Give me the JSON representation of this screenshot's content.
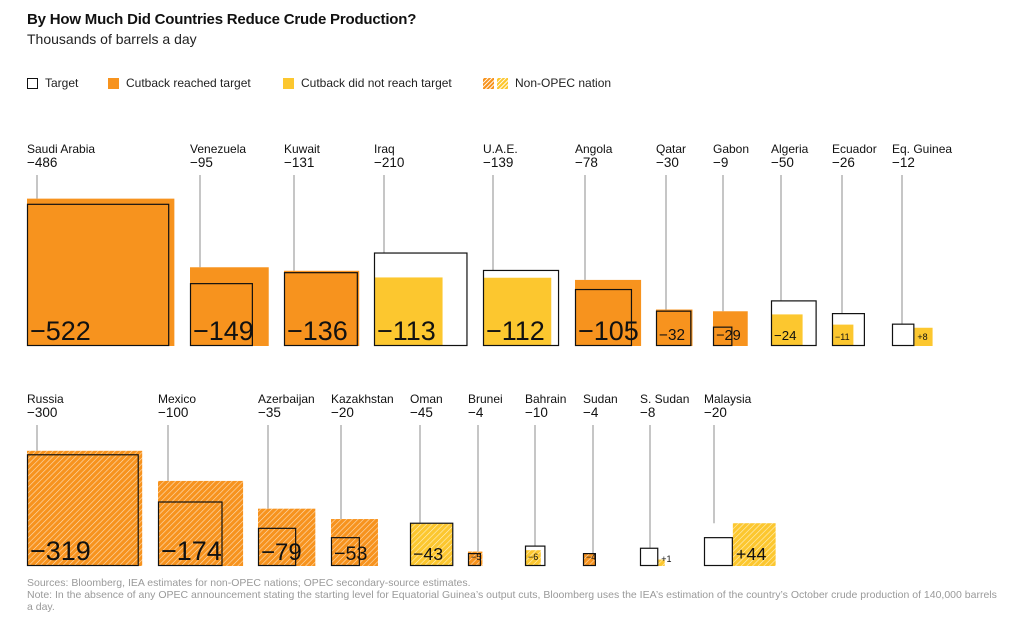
{
  "title": "By How Much Did Countries Reduce Crude Production?",
  "subtitle": "Thousands of barrels a day",
  "legend": {
    "target": "Target",
    "reached": "Cutback reached target",
    "not_reached": "Cutback did not reach target",
    "non_opec": "Non-OPEC nation"
  },
  "colors": {
    "reached": "#f7931e",
    "not_reached": "#fcc72f",
    "target_outline": "#111111",
    "leader_line": "#8c8c8c"
  },
  "chart_data": {
    "type": "proportional-squares",
    "title": "By How Much Did Countries Reduce Crude Production?",
    "subtitle": "Thousands of barrels a day",
    "note_value": "target shown under country name; actual cutback shown inside square",
    "rows": [
      [
        {
          "country": "Saudi Arabia",
          "target": -486,
          "actual": -522,
          "actual_label": "−522",
          "target_label": "−486",
          "status": "reached",
          "non_opec": false
        },
        {
          "country": "Venezuela",
          "target": -95,
          "actual": -149,
          "actual_label": "−149",
          "target_label": "−95",
          "status": "reached",
          "non_opec": false
        },
        {
          "country": "Kuwait",
          "target": -131,
          "actual": -136,
          "actual_label": "−136",
          "target_label": "−131",
          "status": "reached",
          "non_opec": false
        },
        {
          "country": "Iraq",
          "target": -210,
          "actual": -113,
          "actual_label": "−113",
          "target_label": "−210",
          "status": "not_reached",
          "non_opec": false
        },
        {
          "country": "U.A.E.",
          "target": -139,
          "actual": -112,
          "actual_label": "−112",
          "target_label": "−139",
          "status": "not_reached",
          "non_opec": false
        },
        {
          "country": "Angola",
          "target": -78,
          "actual": -105,
          "actual_label": "−105",
          "target_label": "−78",
          "status": "reached",
          "non_opec": false
        },
        {
          "country": "Qatar",
          "target": -30,
          "actual": -32,
          "actual_label": "−32",
          "target_label": "−30",
          "status": "reached",
          "non_opec": false
        },
        {
          "country": "Gabon",
          "target": -9,
          "actual": -29,
          "actual_label": "−29",
          "target_label": "−9",
          "status": "reached",
          "non_opec": false
        },
        {
          "country": "Algeria",
          "target": -50,
          "actual": -24,
          "actual_label": "−24",
          "target_label": "−50",
          "status": "not_reached",
          "non_opec": false
        },
        {
          "country": "Ecuador",
          "target": -26,
          "actual": -11,
          "actual_label": "−11",
          "target_label": "−26",
          "status": "not_reached",
          "non_opec": false
        },
        {
          "country": "Eq. Guinea",
          "target": -12,
          "actual": 8,
          "actual_label": "+8",
          "target_label": "−12",
          "status": "not_reached",
          "non_opec": false
        }
      ],
      [
        {
          "country": "Russia",
          "target": -300,
          "actual": -319,
          "actual_label": "−319",
          "target_label": "−300",
          "status": "reached",
          "non_opec": true
        },
        {
          "country": "Mexico",
          "target": -100,
          "actual": -174,
          "actual_label": "−174",
          "target_label": "−100",
          "status": "reached",
          "non_opec": true
        },
        {
          "country": "Azerbaijan",
          "target": -35,
          "actual": -79,
          "actual_label": "−79",
          "target_label": "−35",
          "status": "reached",
          "non_opec": true
        },
        {
          "country": "Kazakhstan",
          "target": -20,
          "actual": -53,
          "actual_label": "−53",
          "target_label": "−20",
          "status": "reached",
          "non_opec": true
        },
        {
          "country": "Oman",
          "target": -45,
          "actual": -43,
          "actual_label": "−43",
          "target_label": "−45",
          "status": "not_reached",
          "non_opec": true
        },
        {
          "country": "Brunei",
          "target": -4,
          "actual": -5,
          "actual_label": "−5",
          "target_label": "−4",
          "status": "reached",
          "non_opec": true
        },
        {
          "country": "Bahrain",
          "target": -10,
          "actual": -6,
          "actual_label": "−6",
          "target_label": "−10",
          "status": "not_reached",
          "non_opec": true
        },
        {
          "country": "Sudan",
          "target": -4,
          "actual": -4,
          "actual_label": "−4",
          "target_label": "−4",
          "status": "reached",
          "non_opec": true
        },
        {
          "country": "S. Sudan",
          "target": -8,
          "actual": 1,
          "actual_label": "+1",
          "target_label": "−8",
          "status": "not_reached",
          "non_opec": true
        },
        {
          "country": "Malaysia",
          "target": -20,
          "actual": 44,
          "actual_label": "+44",
          "target_label": "−20",
          "status": "not_reached",
          "non_opec": true
        }
      ]
    ]
  },
  "sources": "Sources: Bloomberg, IEA estimates for non-OPEC nations; OPEC secondary-source estimates.",
  "note": "Note: In the absence of any OPEC announcement stating the starting level for Equatorial Guinea’s output cuts, Bloomberg uses the IEA’s estimation of the country’s October crude production of 140,000 barrels a day."
}
